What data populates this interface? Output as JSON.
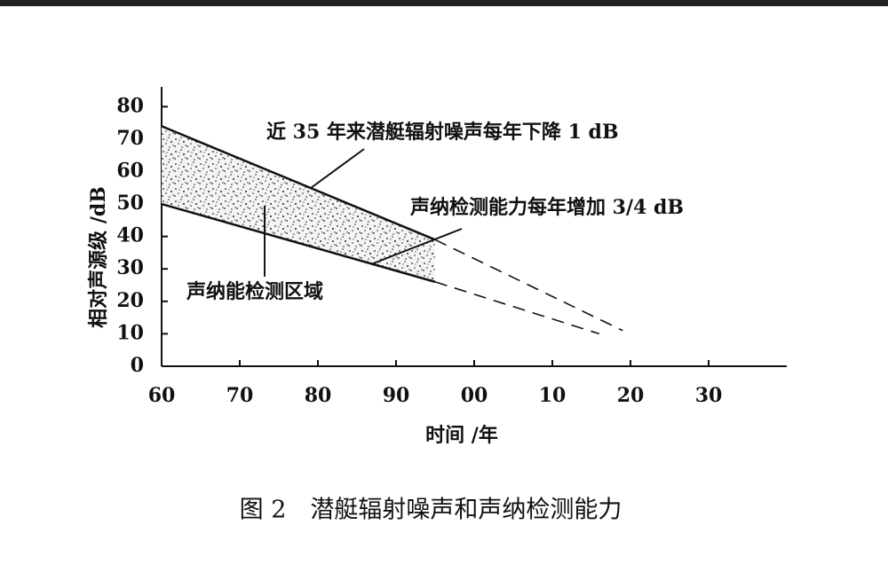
{
  "chart_data": {
    "type": "line",
    "xlabel": "时间 /年",
    "ylabel": "相对声源级 /dB",
    "caption": "图 2　潜艇辐射噪声和声纳检测能力",
    "xlim": [
      1960,
      2040
    ],
    "ylim": [
      0,
      85
    ],
    "xticks": [
      {
        "value": 1960,
        "label": "60"
      },
      {
        "value": 1970,
        "label": "70"
      },
      {
        "value": 1980,
        "label": "80"
      },
      {
        "value": 1990,
        "label": "90"
      },
      {
        "value": 2000,
        "label": "00"
      },
      {
        "value": 2010,
        "label": "10"
      },
      {
        "value": 2020,
        "label": "20"
      },
      {
        "value": 2030,
        "label": "30"
      }
    ],
    "yticks": [
      0,
      10,
      20,
      30,
      40,
      50,
      60,
      70,
      80
    ],
    "color": "#111111",
    "lines": [
      {
        "x": [
          1960,
          1995
        ],
        "values": [
          74,
          39
        ],
        "style": "solid"
      },
      {
        "x": [
          1995,
          2019
        ],
        "values": [
          39,
          11
        ],
        "style": "dashed"
      },
      {
        "x": [
          1960,
          1995
        ],
        "values": [
          50,
          26
        ],
        "style": "solid"
      },
      {
        "x": [
          1995,
          2016
        ],
        "values": [
          26,
          10
        ],
        "style": "dashed"
      }
    ],
    "annotations": [
      "近 35 年来潜艇辐射噪声每年下降 1 dB",
      "声纳检测能力每年增加 3/4 dB",
      "声纳能检测区域"
    ]
  }
}
